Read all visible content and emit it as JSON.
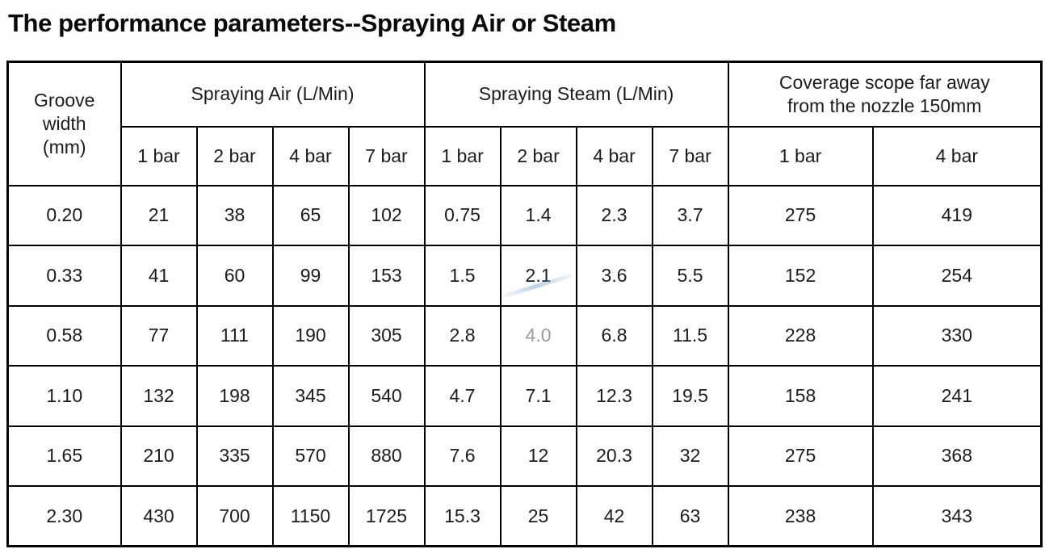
{
  "page": {
    "title": "The performance parameters--Spraying Air or Steam"
  },
  "table": {
    "groove_header_lines": [
      "Groove",
      "width",
      "(mm)"
    ],
    "air_group_label": "Spraying Air (L/Min)",
    "steam_group_label": "Spraying Steam (L/Min)",
    "coverage_header_lines": [
      "Coverage scope far away",
      "from the nozzle 150mm"
    ],
    "sub_headers": [
      "1 bar",
      "2 bar",
      "4 bar",
      "7 bar",
      "1 bar",
      "2 bar",
      "4 bar",
      "7 bar",
      "1 bar",
      "4 bar"
    ],
    "rows": [
      [
        "0.20",
        "21",
        "38",
        "65",
        "102",
        "0.75",
        "1.4",
        "2.3",
        "3.7",
        "275",
        "419"
      ],
      [
        "0.33",
        "41",
        "60",
        "99",
        "153",
        "1.5",
        "2.1",
        "3.6",
        "5.5",
        "152",
        "254"
      ],
      [
        "0.58",
        "77",
        "111",
        "190",
        "305",
        "2.8",
        "4.0",
        "6.8",
        "11.5",
        "228",
        "330"
      ],
      [
        "1.10",
        "132",
        "198",
        "345",
        "540",
        "4.7",
        "7.1",
        "12.3",
        "19.5",
        "158",
        "241"
      ],
      [
        "1.65",
        "210",
        "335",
        "570",
        "880",
        "7.6",
        "12",
        "20.3",
        "32",
        "275",
        "368"
      ],
      [
        "2.30",
        "430",
        "700",
        "1150",
        "1725",
        "15.3",
        "25",
        "42",
        "63",
        "238",
        "343"
      ]
    ],
    "faded_cell": {
      "row": 2,
      "col": 6
    }
  }
}
